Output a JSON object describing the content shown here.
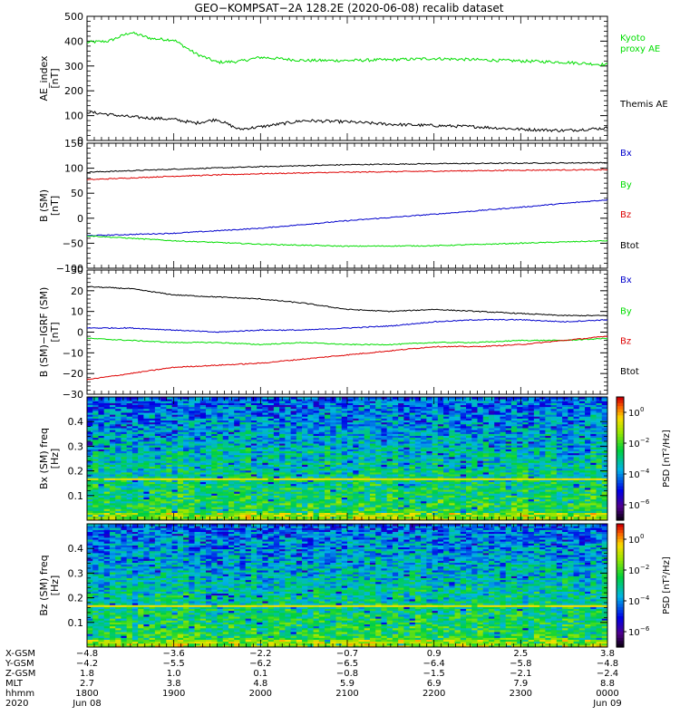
{
  "title": "GEO−KOMPSAT−2A 128.2E (2020-06-08) recalib dataset",
  "colors": {
    "black": "#000000",
    "red": "#dd0000",
    "green": "#00dd00",
    "blue": "#0000cc",
    "kyoto": "#22dd22"
  },
  "chart_data": [
    {
      "type": "line",
      "ylabel": "AE_index [nT]",
      "ylim": [
        0,
        500
      ],
      "yticks": [
        "0",
        "100",
        "200",
        "300",
        "400",
        "500"
      ],
      "yticks_values": [
        0,
        100,
        200,
        300,
        400,
        500
      ],
      "legend": [
        {
          "name": "Kyoto proxy AE",
          "lines": [
            "Kyoto",
            "proxy AE"
          ],
          "color": "green"
        },
        {
          "name": "Themis AE",
          "lines": [
            "Themis AE"
          ],
          "color": "black"
        }
      ],
      "series": [
        {
          "name": "Kyoto proxy AE",
          "color": "green",
          "x": [
            18.0,
            18.25,
            18.5,
            18.75,
            19.0,
            19.25,
            19.5,
            19.75,
            20.0,
            20.5,
            21.0,
            21.5,
            22.0,
            22.5,
            23.0,
            23.5,
            24.0
          ],
          "y": [
            395,
            400,
            435,
            410,
            405,
            350,
            315,
            318,
            335,
            322,
            322,
            325,
            330,
            325,
            320,
            315,
            305
          ]
        },
        {
          "name": "Themis AE",
          "color": "black",
          "x": [
            18.0,
            18.25,
            18.5,
            18.75,
            19.0,
            19.25,
            19.5,
            19.75,
            20.0,
            20.5,
            21.0,
            21.5,
            22.0,
            22.5,
            23.0,
            23.5,
            24.0
          ],
          "y": [
            115,
            105,
            95,
            90,
            85,
            70,
            85,
            45,
            55,
            80,
            75,
            65,
            60,
            55,
            45,
            40,
            50
          ]
        }
      ]
    },
    {
      "type": "line",
      "ylabel": "B (SM) [nT]",
      "ylim": [
        -100,
        150
      ],
      "yticks": [
        "−100",
        "−50",
        "0",
        "50",
        "100",
        "150"
      ],
      "yticks_values": [
        -100,
        -50,
        0,
        50,
        100,
        150
      ],
      "legend": [
        {
          "name": "Bx",
          "lines": [
            "Bx"
          ],
          "color": "blue"
        },
        {
          "name": "By",
          "lines": [
            "By"
          ],
          "color": "green"
        },
        {
          "name": "Bz",
          "lines": [
            "Bz"
          ],
          "color": "red"
        },
        {
          "name": "Btot",
          "lines": [
            "Btot"
          ],
          "color": "black"
        }
      ],
      "series": [
        {
          "name": "Btot",
          "color": "black",
          "x": [
            18,
            19,
            20,
            21,
            22,
            23,
            24
          ],
          "y": [
            92,
            98,
            103,
            107,
            109,
            110,
            111
          ]
        },
        {
          "name": "Bz",
          "color": "red",
          "x": [
            18,
            19,
            20,
            21,
            22,
            23,
            24
          ],
          "y": [
            77,
            84,
            89,
            92,
            94,
            96,
            97
          ]
        },
        {
          "name": "Bx",
          "color": "blue",
          "x": [
            18,
            19,
            20,
            21,
            22,
            23,
            24
          ],
          "y": [
            -35,
            -30,
            -20,
            -5,
            8,
            22,
            37
          ]
        },
        {
          "name": "By",
          "color": "green",
          "x": [
            18,
            19,
            20,
            21,
            22,
            23,
            24
          ],
          "y": [
            -35,
            -45,
            -52,
            -56,
            -55,
            -50,
            -45
          ]
        }
      ]
    },
    {
      "type": "line",
      "ylabel": "B (SM)−IGRF (SM) [nT]",
      "ylim": [
        -30,
        30
      ],
      "yticks": [
        "−30",
        "−20",
        "−10",
        "0",
        "10",
        "20",
        "30"
      ],
      "yticks_values": [
        -30,
        -20,
        -10,
        0,
        10,
        20,
        30
      ],
      "legend": [
        {
          "name": "Bx",
          "lines": [
            "Bx"
          ],
          "color": "blue"
        },
        {
          "name": "By",
          "lines": [
            "By"
          ],
          "color": "green"
        },
        {
          "name": "Bz",
          "lines": [
            "Bz"
          ],
          "color": "red"
        },
        {
          "name": "Btot",
          "lines": [
            "Btot"
          ],
          "color": "black"
        }
      ],
      "series": [
        {
          "name": "Btot",
          "color": "black",
          "x": [
            18,
            18.5,
            19,
            19.5,
            20,
            20.5,
            21,
            21.5,
            22,
            22.5,
            23,
            23.5,
            24
          ],
          "y": [
            22,
            21,
            18,
            17,
            16,
            14,
            11,
            10,
            11,
            10,
            9,
            8,
            8
          ]
        },
        {
          "name": "Bx",
          "color": "blue",
          "x": [
            18,
            18.5,
            19,
            19.5,
            20,
            20.5,
            21,
            21.5,
            22,
            22.5,
            23,
            23.5,
            24
          ],
          "y": [
            2,
            2,
            1,
            0,
            1,
            1,
            2,
            3,
            5,
            6,
            6,
            5,
            6
          ]
        },
        {
          "name": "By",
          "color": "green",
          "x": [
            18,
            18.5,
            19,
            19.5,
            20,
            20.5,
            21,
            21.5,
            22,
            22.5,
            23,
            23.5,
            24
          ],
          "y": [
            -3,
            -4,
            -5,
            -5,
            -6,
            -5,
            -6,
            -6,
            -5,
            -5,
            -4,
            -4,
            -3
          ]
        },
        {
          "name": "Bz",
          "color": "red",
          "x": [
            18,
            18.5,
            19,
            19.5,
            20,
            20.5,
            21,
            21.5,
            22,
            22.5,
            23,
            23.5,
            24
          ],
          "y": [
            -23,
            -20,
            -17,
            -16,
            -15,
            -13,
            -11,
            -9,
            -7,
            -7,
            -6,
            -4,
            -2
          ]
        }
      ]
    },
    {
      "type": "heatmap",
      "ylabel": "Bx (SM) freq [Hz]",
      "ylim": [
        0,
        0.5
      ],
      "yticks": [
        "0.1",
        "0.2",
        "0.3",
        "0.4"
      ],
      "yticks_values": [
        0.1,
        0.2,
        0.3,
        0.4
      ],
      "colorbar_label": "PSD [nT²/Hz]",
      "colorbar_ticks": [
        {
          "base": "10",
          "exp": "0",
          "value": 1
        },
        {
          "base": "10",
          "exp": "−2",
          "value": 0.01
        },
        {
          "base": "10",
          "exp": "−4",
          "value": 0.0001
        },
        {
          "base": "10",
          "exp": "−6",
          "value": 1e-06
        }
      ],
      "clim": [
        1e-07,
        10
      ],
      "feature_line_freq": 0.167
    },
    {
      "type": "heatmap",
      "ylabel": "Bz (SM) freq [Hz]",
      "ylim": [
        0,
        0.5
      ],
      "yticks": [
        "0.1",
        "0.2",
        "0.3",
        "0.4"
      ],
      "yticks_values": [
        0.1,
        0.2,
        0.3,
        0.4
      ],
      "colorbar_label": "PSD [nT²/Hz]",
      "colorbar_ticks": [
        {
          "base": "10",
          "exp": "0",
          "value": 1
        },
        {
          "base": "10",
          "exp": "−2",
          "value": 0.01
        },
        {
          "base": "10",
          "exp": "−4",
          "value": 0.0001
        },
        {
          "base": "10",
          "exp": "−6",
          "value": 1e-06
        }
      ],
      "clim": [
        1e-07,
        10
      ],
      "feature_line_freq": 0.167
    }
  ],
  "time_axis": {
    "xlim": [
      18,
      24
    ],
    "x_values": [
      18,
      19,
      20,
      21,
      22,
      23,
      24
    ],
    "row_labels": [
      "X-GSM",
      "Y-GSM",
      "Z-GSM",
      "MLT",
      "hhmm",
      "2020"
    ],
    "columns": [
      [
        "−4.8",
        "−4.2",
        "1.8",
        "2.7",
        "1800",
        "Jun 08"
      ],
      [
        "−3.6",
        "−5.5",
        "1.0",
        "3.8",
        "1900",
        ""
      ],
      [
        "−2.2",
        "−6.2",
        "0.1",
        "4.8",
        "2000",
        ""
      ],
      [
        "−0.7",
        "−6.5",
        "−0.8",
        "5.9",
        "2100",
        ""
      ],
      [
        "0.9",
        "−6.4",
        "−1.5",
        "6.9",
        "2200",
        ""
      ],
      [
        "2.5",
        "−5.8",
        "−2.1",
        "7.9",
        "2300",
        ""
      ],
      [
        "3.8",
        "−4.8",
        "−2.4",
        "8.8",
        "0000",
        "Jun 09"
      ]
    ]
  }
}
